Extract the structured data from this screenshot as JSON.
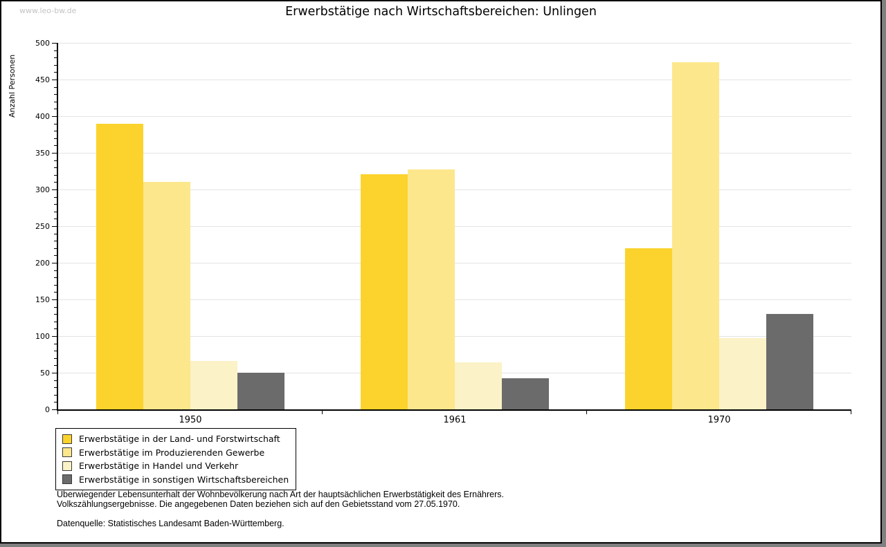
{
  "watermark": "www.leo-bw.de",
  "title": "Erwerbstätige nach Wirtschaftsbereichen: Unlingen",
  "ylabel": "Anzahl Personen",
  "footnotes": {
    "line1": "Überwiegender Lebensunterhalt der Wohnbevölkerung nach Art der hauptsächlichen Erwerbstätigkeit des Ernährers.",
    "line2": "Volkszählungsergebnisse. Die angegebenen Daten beziehen sich auf den Gebietsstand vom 27.05.1970.",
    "source": "Datenquelle: Statistisches Landesamt Baden-Württemberg."
  },
  "colors": {
    "gridline": "#e3e3e3",
    "axis": "#000000",
    "watermark": "#c3c3c3",
    "frame_shadow": "#808080",
    "background": "#ffffff"
  },
  "chart_data": {
    "type": "bar",
    "title": "Erwerbstätige nach Wirtschaftsbereichen: Unlingen",
    "categories": [
      "1950",
      "1961",
      "1970"
    ],
    "series": [
      {
        "name": "Erwerbstätige in der Land- und Forstwirtschaft",
        "color": "#fbd32c",
        "values": [
          390,
          321,
          220
        ]
      },
      {
        "name": "Erwerbstätige im Produzierenden Gewerbe",
        "color": "#fce78c",
        "values": [
          310,
          327,
          474
        ]
      },
      {
        "name": "Erwerbstätige in Handel und Verkehr",
        "color": "#fbf2c7",
        "values": [
          66,
          64,
          97
        ]
      },
      {
        "name": "Erwerbstätige in sonstigen Wirtschaftsbereichen",
        "color": "#6b6b6b",
        "values": [
          50,
          42,
          130
        ]
      }
    ],
    "xlabel": "",
    "ylabel": "Anzahl Personen",
    "ylim": [
      0,
      500
    ],
    "ytick_step": 50,
    "minor_tick_step": 10,
    "grid": true,
    "legend_position": "bottom-left"
  }
}
